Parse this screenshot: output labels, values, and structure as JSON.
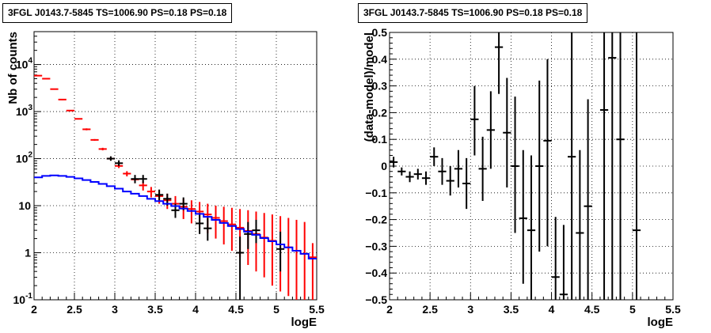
{
  "chart_data": [
    {
      "type": "scatter",
      "title": "3FGL J0143.7-5845 TS=1006.90 PS=0.18 PS=0.18",
      "xlabel": "logE",
      "ylabel": "Nb of counts",
      "xlim": [
        2,
        5.5
      ],
      "ylim": [
        0.1,
        50000
      ],
      "yscale": "log",
      "grid": true,
      "xticks": [
        "2",
        "2.5",
        "3",
        "3.5",
        "4",
        "4.5",
        "5",
        "5.5"
      ],
      "yticks": [
        {
          "value": 0.1,
          "base": "10",
          "exp": "-1"
        },
        {
          "value": 1,
          "base": "1",
          "exp": ""
        },
        {
          "value": 10,
          "base": "10",
          "exp": ""
        },
        {
          "value": 100,
          "base": "10",
          "exp": "2"
        },
        {
          "value": 1000,
          "base": "10",
          "exp": "3"
        },
        {
          "value": 10000,
          "base": "10",
          "exp": "4"
        }
      ],
      "series": [
        {
          "color": "#ff0000",
          "style": "errorbar",
          "x": [
            2.05,
            2.15,
            2.25,
            2.35,
            2.45,
            2.55,
            2.65,
            2.75,
            2.85,
            2.95,
            3.05,
            3.15,
            3.25,
            3.35,
            3.45,
            3.55,
            3.65,
            3.75,
            3.85,
            3.95,
            4.05,
            4.15,
            4.25,
            4.35,
            4.45,
            4.55,
            4.65,
            4.75,
            4.85,
            4.95,
            5.05,
            5.15,
            5.25,
            5.35,
            5.45
          ],
          "y": [
            5800,
            5000,
            3000,
            1800,
            1050,
            700,
            420,
            250,
            160,
            100,
            70,
            48,
            36,
            27,
            20,
            16,
            13,
            11,
            9.5,
            8.5,
            7.5,
            6.5,
            5.5,
            4.7,
            4.0,
            3.4,
            2.9,
            2.5,
            2.1,
            1.8,
            1.5,
            1.3,
            1.1,
            0.95,
            0.8
          ],
          "ylo": [
            5700,
            4900,
            2950,
            1750,
            1020,
            680,
            400,
            240,
            150,
            92,
            63,
            42,
            30,
            21,
            15,
            11,
            8.5,
            6.5,
            5.2,
            4.2,
            3.3,
            2.6,
            2.0,
            1.5,
            1.1,
            0.8,
            0.55,
            0.4,
            0.3,
            0.2,
            0.15,
            0.12,
            0.1,
            0.1,
            0.1
          ],
          "yhi": [
            5900,
            5100,
            3050,
            1850,
            1080,
            720,
            440,
            260,
            170,
            108,
            77,
            54,
            42,
            33,
            25,
            21,
            18,
            16,
            14,
            13,
            12,
            11,
            10,
            9.5,
            9,
            8.5,
            8,
            7.5,
            7,
            6.5,
            6,
            5.5,
            5,
            4.5,
            1.6
          ]
        },
        {
          "color": "#000000",
          "style": "errorbar",
          "x": [
            2.95,
            3.05,
            3.25,
            3.35,
            3.55,
            3.65,
            3.75,
            3.85,
            4.05,
            4.15,
            4.55,
            4.65,
            4.75,
            5.05
          ],
          "y": [
            100,
            80,
            37,
            37,
            17,
            14,
            8,
            11,
            4.2,
            3.3,
            1.0,
            2.5,
            3.0,
            1.2
          ],
          "ylo": [
            90,
            70,
            30,
            30,
            13,
            10,
            5.5,
            8,
            2.5,
            1.8,
            0.1,
            1.2,
            1.6,
            0.4
          ],
          "yhi": [
            112,
            92,
            45,
            45,
            22,
            18,
            11,
            15,
            7,
            5.5,
            2.2,
            4.5,
            5,
            2.8
          ]
        },
        {
          "color": "#0000ff",
          "style": "step",
          "edges": [
            2.0,
            2.1,
            2.2,
            2.3,
            2.4,
            2.5,
            2.6,
            2.7,
            2.8,
            2.9,
            3.0,
            3.1,
            3.2,
            3.3,
            3.4,
            3.5,
            3.6,
            3.7,
            3.8,
            3.9,
            4.0,
            4.1,
            4.2,
            4.3,
            4.4,
            4.5,
            4.6,
            4.7,
            4.8,
            4.9,
            5.0,
            5.1,
            5.2,
            5.3,
            5.4,
            5.5
          ],
          "values": [
            40,
            43,
            44,
            43,
            41,
            38,
            35,
            32,
            29,
            26,
            23,
            20,
            18,
            16,
            14,
            12.5,
            11,
            9.8,
            8.7,
            7.7,
            6.7,
            5.8,
            5.0,
            4.3,
            3.7,
            3.2,
            2.8,
            2.4,
            2.05,
            1.75,
            1.5,
            1.3,
            1.1,
            0.95,
            0.75
          ]
        }
      ]
    },
    {
      "type": "scatter",
      "title": "3FGL J0143.7-5845 TS=1006.90 PS=0.18 PS=0.18",
      "xlabel": "logE",
      "ylabel": "(data-model)/model",
      "xlim": [
        2,
        5.5
      ],
      "ylim": [
        -0.5,
        0.5
      ],
      "grid": true,
      "xticks": [
        "2",
        "2.5",
        "3",
        "3.5",
        "4",
        "4.5",
        "5",
        "5.5"
      ],
      "yticks": [
        "−0.5",
        "−0.4",
        "−0.3",
        "−0.2",
        "−0.1",
        "0",
        "0.1",
        "0.2",
        "0.3",
        "0.4",
        "0.5"
      ],
      "series": [
        {
          "color": "#000000",
          "style": "errorbar",
          "x": [
            2.05,
            2.15,
            2.25,
            2.35,
            2.45,
            2.55,
            2.65,
            2.75,
            2.85,
            2.95,
            3.05,
            3.15,
            3.25,
            3.35,
            3.45,
            3.55,
            3.65,
            3.75,
            3.85,
            3.95,
            4.05,
            4.15,
            4.25,
            4.35,
            4.45,
            4.65,
            4.75,
            4.85,
            5.05
          ],
          "y": [
            0.015,
            -0.02,
            -0.04,
            -0.03,
            -0.045,
            0.035,
            -0.02,
            -0.055,
            -0.01,
            -0.065,
            0.175,
            -0.01,
            0.135,
            0.445,
            0.125,
            0.0,
            -0.195,
            -0.24,
            0.0,
            0.095,
            -0.415,
            -0.48,
            0.035,
            -0.25,
            -0.15,
            0.21,
            0.405,
            0.1,
            -0.24
          ],
          "ylo": [
            -0.005,
            -0.035,
            -0.06,
            -0.05,
            -0.07,
            0.0,
            -0.07,
            -0.11,
            -0.08,
            -0.16,
            0.04,
            -0.13,
            -0.01,
            0.27,
            -0.08,
            -0.25,
            -0.44,
            -0.5,
            -0.32,
            -0.3,
            -0.5,
            -0.5,
            -0.5,
            -0.5,
            -0.5,
            -0.5,
            -0.5,
            -0.5,
            -0.5
          ],
          "yhi": [
            0.035,
            -0.005,
            -0.02,
            -0.01,
            -0.02,
            0.07,
            0.03,
            0.0,
            0.06,
            0.03,
            0.3,
            0.11,
            0.28,
            0.5,
            0.33,
            0.26,
            0.06,
            0.04,
            0.32,
            0.4,
            -0.19,
            -0.22,
            0.5,
            0.06,
            0.25,
            0.5,
            0.5,
            0.5,
            0.5
          ]
        }
      ]
    }
  ]
}
